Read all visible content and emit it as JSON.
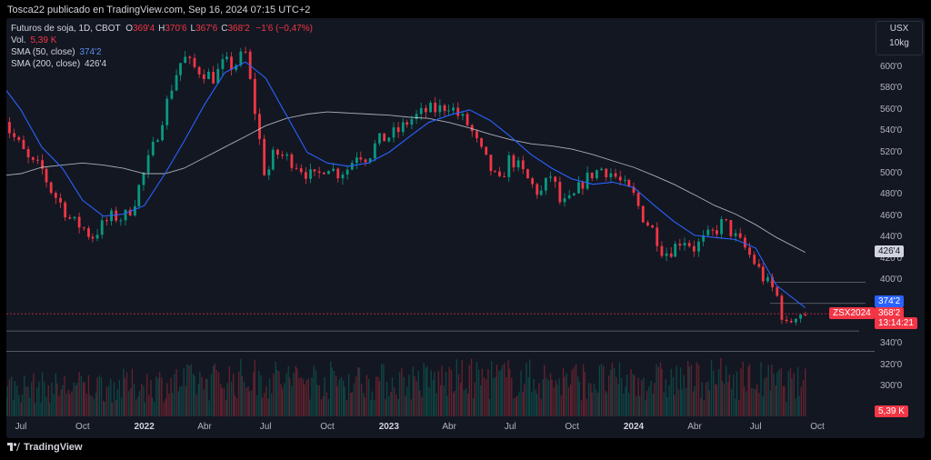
{
  "header": {
    "published_by": "Tosca22 publicado en TradingView.com, Sep 16, 2024 07:15 UTC+2"
  },
  "legend": {
    "instrument": "Futuros de soja, 1D, CBOT",
    "ohlc": [
      {
        "label": "O",
        "value": "369'4"
      },
      {
        "label": "H",
        "value": "370'6"
      },
      {
        "label": "L",
        "value": "367'6"
      },
      {
        "label": "C",
        "value": "368'2"
      }
    ],
    "change": "−1'6 (−0,47%)",
    "volume_label": "Vol.",
    "volume_value": "5,39 K",
    "sma50_label": "SMA (50, close)",
    "sma50_value": "374'2",
    "sma200_label": "SMA (200, close)",
    "sma200_value": "426'4"
  },
  "unit_selector": {
    "currency": "USX",
    "unit": "10kg"
  },
  "price_badges": {
    "sma200": "426'4",
    "sma50": "374'2",
    "symbol": "ZSX2024",
    "last": "368'2",
    "countdown": "13:14:21",
    "volume": "5,39 K"
  },
  "colors": {
    "background": "#131722",
    "up": "#089981",
    "down": "#f23645",
    "sma50": "#2962ff",
    "sma200": "#d1d4dc",
    "price_line": "#f23645"
  },
  "footer": {
    "brand": "TradingView"
  },
  "chart_data": {
    "type": "line",
    "title": "Futuros de soja, 1D, CBOT",
    "xlabel": "",
    "ylabel": "",
    "y_ticks": [
      "600'0",
      "580'0",
      "560'0",
      "540'0",
      "520'0",
      "500'0",
      "480'0",
      "460'0",
      "440'0",
      "420'0",
      "400'0",
      "380'0",
      "340'0",
      "320'0",
      "300'0"
    ],
    "x_ticks": [
      {
        "label": "Jul",
        "date": "2021-07-01",
        "bold": false
      },
      {
        "label": "Oct",
        "date": "2021-10-01",
        "bold": false
      },
      {
        "label": "2022",
        "date": "2022-01-01",
        "bold": true
      },
      {
        "label": "Abr",
        "date": "2022-04-01",
        "bold": false
      },
      {
        "label": "Jul",
        "date": "2022-07-01",
        "bold": false
      },
      {
        "label": "Oct",
        "date": "2022-10-01",
        "bold": false
      },
      {
        "label": "2023",
        "date": "2023-01-01",
        "bold": true
      },
      {
        "label": "Abr",
        "date": "2023-04-01",
        "bold": false
      },
      {
        "label": "Jul",
        "date": "2023-07-01",
        "bold": false
      },
      {
        "label": "Oct",
        "date": "2023-10-01",
        "bold": false
      },
      {
        "label": "2024",
        "date": "2024-01-01",
        "bold": true
      },
      {
        "label": "Abr",
        "date": "2024-04-01",
        "bold": false
      },
      {
        "label": "Jul",
        "date": "2024-07-01",
        "bold": false
      },
      {
        "label": "Oct",
        "date": "2024-10-01",
        "bold": false
      }
    ],
    "ylim": [
      285,
      618
    ],
    "xlim": [
      "2021-06-01",
      "2024-11-01"
    ],
    "series": [
      {
        "name": "Futuros de soja",
        "style": "candles-approx-close",
        "color": "#089981",
        "x": [
          "2021-06-01",
          "2021-06-15",
          "2021-07-01",
          "2021-07-15",
          "2021-08-01",
          "2021-08-15",
          "2021-09-01",
          "2021-09-15",
          "2021-10-01",
          "2021-10-15",
          "2021-11-01",
          "2021-11-15",
          "2021-12-01",
          "2021-12-15",
          "2022-01-01",
          "2022-01-15",
          "2022-02-01",
          "2022-02-15",
          "2022-03-01",
          "2022-03-15",
          "2022-04-01",
          "2022-04-15",
          "2022-05-01",
          "2022-05-15",
          "2022-06-01",
          "2022-06-15",
          "2022-07-01",
          "2022-07-15",
          "2022-08-01",
          "2022-08-15",
          "2022-09-01",
          "2022-09-15",
          "2022-10-01",
          "2022-10-15",
          "2022-11-01",
          "2022-11-15",
          "2022-12-01",
          "2022-12-15",
          "2023-01-01",
          "2023-01-15",
          "2023-02-01",
          "2023-02-15",
          "2023-03-01",
          "2023-03-15",
          "2023-04-01",
          "2023-04-15",
          "2023-05-01",
          "2023-05-15",
          "2023-06-01",
          "2023-06-15",
          "2023-07-01",
          "2023-07-15",
          "2023-08-01",
          "2023-08-15",
          "2023-09-01",
          "2023-09-15",
          "2023-10-01",
          "2023-10-15",
          "2023-11-01",
          "2023-11-15",
          "2023-12-01",
          "2023-12-15",
          "2024-01-01",
          "2024-01-15",
          "2024-02-01",
          "2024-02-15",
          "2024-03-01",
          "2024-03-15",
          "2024-04-01",
          "2024-04-15",
          "2024-05-01",
          "2024-05-15",
          "2024-06-01",
          "2024-06-15",
          "2024-07-01",
          "2024-07-15",
          "2024-08-01",
          "2024-08-15",
          "2024-09-01",
          "2024-09-13"
        ],
        "values": [
          565,
          540,
          525,
          510,
          505,
          485,
          470,
          455,
          450,
          440,
          452,
          460,
          458,
          470,
          500,
          525,
          560,
          590,
          610,
          600,
          595,
          590,
          605,
          600,
          615,
          560,
          495,
          520,
          515,
          510,
          500,
          495,
          510,
          500,
          505,
          520,
          515,
          530,
          535,
          540,
          550,
          555,
          560,
          560,
          565,
          555,
          545,
          525,
          505,
          490,
          515,
          505,
          490,
          480,
          500,
          470,
          475,
          490,
          500,
          505,
          500,
          490,
          480,
          460,
          445,
          425,
          430,
          440,
          430,
          438,
          445,
          455,
          440,
          430,
          415,
          400,
          388,
          355,
          370,
          368
        ]
      },
      {
        "name": "SMA (50, close)",
        "color": "#2962ff",
        "x": [
          "2021-06-01",
          "2021-07-01",
          "2021-08-01",
          "2021-09-01",
          "2021-10-01",
          "2021-11-01",
          "2021-12-01",
          "2022-01-01",
          "2022-02-01",
          "2022-03-01",
          "2022-04-01",
          "2022-05-01",
          "2022-06-01",
          "2022-07-01",
          "2022-08-01",
          "2022-09-01",
          "2022-10-01",
          "2022-11-01",
          "2022-12-01",
          "2023-01-01",
          "2023-02-01",
          "2023-03-01",
          "2023-04-01",
          "2023-05-01",
          "2023-06-01",
          "2023-07-01",
          "2023-08-01",
          "2023-09-01",
          "2023-10-01",
          "2023-11-01",
          "2023-12-01",
          "2024-01-01",
          "2024-02-01",
          "2024-03-01",
          "2024-04-01",
          "2024-05-01",
          "2024-06-01",
          "2024-07-01",
          "2024-08-01",
          "2024-09-13"
        ],
        "values": [
          585,
          560,
          525,
          505,
          475,
          460,
          462,
          470,
          500,
          530,
          565,
          595,
          605,
          590,
          555,
          520,
          510,
          507,
          510,
          520,
          535,
          548,
          555,
          560,
          550,
          535,
          518,
          505,
          495,
          490,
          492,
          487,
          470,
          455,
          442,
          440,
          438,
          430,
          395,
          374
        ]
      },
      {
        "name": "SMA (200, close)",
        "color": "#d1d4dc",
        "x": [
          "2021-06-01",
          "2021-07-01",
          "2021-08-01",
          "2021-09-01",
          "2021-10-01",
          "2021-11-01",
          "2021-12-01",
          "2022-01-01",
          "2022-02-01",
          "2022-03-01",
          "2022-04-01",
          "2022-05-01",
          "2022-06-01",
          "2022-07-01",
          "2022-08-01",
          "2022-09-01",
          "2022-10-01",
          "2022-11-01",
          "2022-12-01",
          "2023-01-01",
          "2023-02-01",
          "2023-03-01",
          "2023-04-01",
          "2023-05-01",
          "2023-06-01",
          "2023-07-01",
          "2023-08-01",
          "2023-09-01",
          "2023-10-01",
          "2023-11-01",
          "2023-12-01",
          "2024-01-01",
          "2024-02-01",
          "2024-03-01",
          "2024-04-01",
          "2024-05-01",
          "2024-06-01",
          "2024-07-01",
          "2024-08-01",
          "2024-09-13"
        ],
        "values": [
          498,
          500,
          506,
          508,
          510,
          508,
          505,
          500,
          500,
          505,
          515,
          525,
          535,
          545,
          552,
          556,
          558,
          557,
          556,
          555,
          553,
          552,
          548,
          543,
          537,
          532,
          528,
          526,
          523,
          518,
          512,
          506,
          498,
          490,
          480,
          470,
          462,
          452,
          440,
          426
        ]
      }
    ],
    "horizontal_levels": [
      {
        "value": 398,
        "color": "#b2b5be"
      },
      {
        "value": 378,
        "color": "#b2b5be"
      },
      {
        "value": 368.25,
        "color": "#f23645",
        "dashed": true
      },
      {
        "value": 352,
        "color": "#b2b5be"
      },
      {
        "value": 333,
        "color": "#b2b5be"
      }
    ],
    "volume": {
      "name": "Vol.",
      "last": "5,39 K",
      "trend_x": [
        "2021-06-01",
        "2022-01-01",
        "2022-06-01",
        "2023-01-01",
        "2023-06-01",
        "2024-01-01",
        "2024-06-01",
        "2024-09-13"
      ],
      "trend_relative": [
        0.4,
        0.45,
        0.55,
        0.5,
        0.55,
        0.5,
        0.55,
        0.45
      ]
    },
    "grid": false,
    "legend": "top-left"
  }
}
